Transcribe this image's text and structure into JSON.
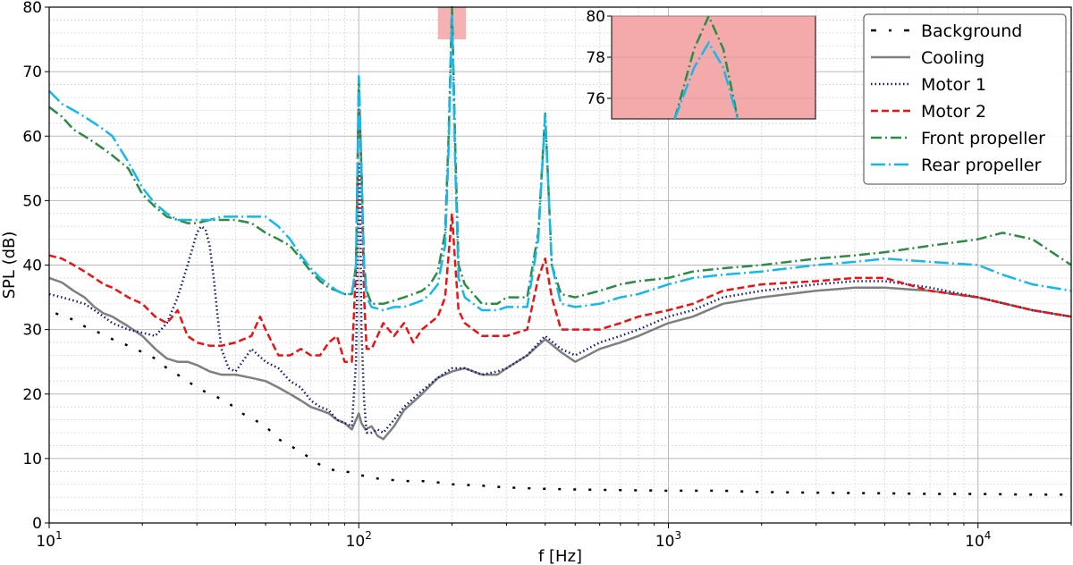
{
  "chart_data": {
    "type": "line",
    "xlabel": "f [Hz]",
    "ylabel": "SPL (dB)",
    "x_scale": "log",
    "xlim": [
      10,
      20000
    ],
    "ylim": [
      0,
      80
    ],
    "x_major_ticks": [
      10,
      100,
      1000,
      10000
    ],
    "x_tick_labels": [
      {
        "base": "10",
        "exp": "1"
      },
      {
        "base": "10",
        "exp": "2"
      },
      {
        "base": "10",
        "exp": "3"
      },
      {
        "base": "10",
        "exp": "4"
      }
    ],
    "y_ticks": [
      0,
      10,
      20,
      30,
      40,
      50,
      60,
      70,
      80
    ],
    "grid": true,
    "minor_grid": true,
    "legend_position": "top-right",
    "highlight_region": {
      "x": [
        180,
        222
      ],
      "y": [
        75,
        80
      ],
      "color": "#f4aaaa"
    },
    "inset": {
      "xlim": [
        180,
        222
      ],
      "ylim": [
        75,
        80
      ],
      "y_ticks": [
        76,
        78,
        80
      ],
      "series": [
        {
          "name": "Front propeller",
          "x": [
            193,
            197,
            200,
            203,
            206
          ],
          "y": [
            75,
            78.4,
            80,
            78.4,
            75
          ]
        },
        {
          "name": "Rear propeller",
          "x": [
            193,
            197,
            200,
            203,
            206
          ],
          "y": [
            75,
            77.5,
            78.7,
            77.5,
            75
          ]
        }
      ]
    },
    "series": [
      {
        "name": "Background",
        "color": "#000000",
        "style": "dash-dot-sparse",
        "width": 2.5,
        "x": [
          10.5,
          12,
          13,
          14.5,
          16,
          18,
          20,
          22,
          24,
          27,
          30,
          33,
          37,
          42,
          46,
          50,
          55,
          60,
          65,
          70,
          75,
          80,
          85,
          90,
          95,
          100,
          110,
          120,
          140,
          160,
          180,
          200,
          250,
          300,
          400,
          500,
          700,
          1000,
          1500,
          2000,
          3000,
          5000,
          7000,
          10000,
          15000,
          20000
        ],
        "y": [
          32.5,
          31.5,
          30.5,
          29.5,
          28.5,
          27.5,
          26.5,
          25.5,
          24,
          22.5,
          21,
          20,
          19,
          17,
          16,
          15,
          13,
          12,
          11,
          10,
          9,
          8.5,
          8,
          8,
          7.8,
          7.5,
          7,
          6.8,
          6.5,
          6.5,
          6.3,
          6,
          5.8,
          5.5,
          5.3,
          5.2,
          5.1,
          5,
          5,
          4.8,
          4.7,
          4.6,
          4.5,
          4.5,
          4.4,
          4.4
        ]
      },
      {
        "name": "Cooling",
        "color": "#7f7f7f",
        "style": "solid",
        "width": 2.5,
        "x": [
          10,
          11,
          12,
          13,
          14,
          15,
          16,
          18,
          20,
          22,
          24,
          26,
          28,
          30,
          33,
          36,
          40,
          45,
          50,
          55,
          60,
          65,
          70,
          75,
          80,
          85,
          90,
          95,
          98,
          100,
          102,
          105,
          110,
          115,
          120,
          130,
          140,
          160,
          180,
          200,
          220,
          250,
          280,
          300,
          350,
          400,
          450,
          500,
          600,
          700,
          800,
          1000,
          1200,
          1500,
          2000,
          3000,
          4000,
          5000,
          7000,
          10000,
          15000,
          20000
        ],
        "y": [
          38,
          37.3,
          36,
          35,
          33.5,
          32.5,
          32,
          30.5,
          29,
          27,
          25.5,
          25,
          25,
          24.5,
          23.5,
          23,
          23,
          22.5,
          22,
          21,
          20,
          19,
          18,
          17.5,
          17,
          16,
          15.5,
          14.5,
          16,
          17,
          15.5,
          14.5,
          15,
          13.5,
          13,
          15,
          17.5,
          20,
          22.5,
          23.5,
          24,
          23,
          23,
          24,
          26,
          28.5,
          26.5,
          25,
          27,
          28,
          29,
          31,
          32,
          34,
          35,
          36,
          36.5,
          36.5,
          36,
          35,
          33,
          32
        ]
      },
      {
        "name": "Motor 1",
        "color": "#0b1a7a",
        "style": "dotted",
        "width": 2.5,
        "x": [
          10,
          11,
          12,
          13,
          14,
          15,
          16,
          18,
          20,
          22,
          24,
          26,
          28,
          30,
          31,
          32,
          33,
          34,
          35,
          36,
          38,
          40,
          45,
          50,
          55,
          60,
          65,
          70,
          75,
          80,
          85,
          90,
          95,
          98,
          100,
          101,
          102,
          104,
          106,
          110,
          115,
          120,
          130,
          140,
          160,
          180,
          200,
          220,
          250,
          280,
          300,
          350,
          400,
          450,
          500,
          600,
          700,
          800,
          1000,
          1200,
          1500,
          2000,
          3000,
          4000,
          5000,
          7000,
          10000,
          15000,
          20000
        ],
        "y": [
          35.5,
          35,
          34.5,
          34,
          33,
          32,
          31,
          30,
          29.5,
          29,
          31,
          35,
          40,
          45,
          46,
          45.5,
          43,
          38,
          32,
          27,
          24,
          23.5,
          27,
          25,
          24,
          22,
          21,
          19,
          18,
          17.5,
          16,
          15.5,
          15,
          25,
          56,
          50,
          30,
          19,
          14,
          14,
          14.5,
          14,
          16,
          18,
          20.5,
          22.5,
          24,
          24,
          23,
          23.5,
          24,
          26,
          29,
          27,
          26,
          28,
          29,
          30,
          32,
          33,
          35,
          36,
          37,
          37.5,
          37.5,
          36.5,
          35,
          33,
          32
        ]
      },
      {
        "name": "Motor 2",
        "color": "#ee1111",
        "style": "dashed",
        "width": 2.5,
        "x": [
          10,
          11,
          12,
          13,
          14,
          15,
          16,
          18,
          20,
          22,
          24,
          25,
          26,
          28,
          30,
          33,
          36,
          40,
          45,
          48,
          50,
          55,
          60,
          65,
          70,
          75,
          80,
          85,
          90,
          95,
          98,
          100,
          102,
          104,
          106,
          110,
          120,
          130,
          140,
          150,
          160,
          180,
          190,
          200,
          205,
          210,
          220,
          250,
          280,
          300,
          350,
          380,
          400,
          420,
          450,
          500,
          600,
          700,
          800,
          1000,
          1200,
          1500,
          2000,
          3000,
          4000,
          5000,
          7000,
          10000,
          15000,
          20000
        ],
        "y": [
          41.5,
          41,
          40,
          39,
          38,
          37,
          36.5,
          35,
          34,
          32,
          31,
          32,
          33,
          29,
          28,
          27.5,
          27.5,
          28,
          29,
          32,
          30,
          26,
          26,
          27,
          26,
          26,
          28,
          29,
          25,
          25,
          40,
          67,
          55,
          35,
          27,
          27,
          31,
          29,
          31,
          28,
          30,
          32,
          35,
          48,
          40,
          33,
          31,
          29,
          29,
          29,
          30,
          38,
          41,
          35,
          30,
          30,
          30,
          31,
          32,
          33,
          34,
          36,
          37,
          37.5,
          38,
          38,
          36,
          35,
          33,
          32
        ]
      },
      {
        "name": "Front propeller",
        "color": "#2e8b46",
        "style": "dashdot",
        "width": 2.5,
        "x": [
          10,
          11,
          12,
          13,
          14,
          15,
          16,
          18,
          20,
          22,
          24,
          26,
          28,
          30,
          33,
          36,
          40,
          45,
          50,
          55,
          60,
          65,
          70,
          75,
          80,
          85,
          90,
          95,
          98,
          100,
          102,
          104,
          106,
          110,
          120,
          130,
          140,
          150,
          160,
          170,
          180,
          190,
          195,
          200,
          205,
          210,
          220,
          250,
          280,
          300,
          350,
          380,
          400,
          420,
          450,
          500,
          600,
          700,
          800,
          1000,
          1200,
          1500,
          2000,
          3000,
          4000,
          5000,
          7000,
          10000,
          12000,
          15000,
          20000
        ],
        "y": [
          64.5,
          63,
          61,
          60,
          59,
          58,
          57,
          55,
          51,
          49,
          47.5,
          47,
          46.5,
          46.5,
          47,
          47,
          47,
          46.5,
          45,
          44,
          43,
          41,
          39,
          37.5,
          36.5,
          36,
          35.5,
          35.5,
          40,
          69,
          55,
          40,
          36,
          34,
          34,
          34.5,
          35,
          35.5,
          36,
          37,
          39,
          45,
          60,
          80,
          58,
          40,
          37,
          34,
          34,
          35,
          35,
          45,
          63.5,
          40,
          35.5,
          35,
          36,
          37,
          37.5,
          38,
          39,
          39.5,
          40,
          41,
          41.5,
          42,
          43,
          44,
          45,
          44,
          40
        ]
      },
      {
        "name": "Rear propeller",
        "color": "#14b8ec",
        "style": "longdash-dot",
        "width": 2.5,
        "x": [
          10,
          11,
          12,
          13,
          14,
          15,
          16,
          18,
          20,
          22,
          24,
          26,
          28,
          30,
          33,
          36,
          40,
          45,
          50,
          55,
          60,
          65,
          70,
          75,
          80,
          85,
          90,
          95,
          98,
          100,
          102,
          104,
          106,
          110,
          120,
          130,
          140,
          150,
          160,
          170,
          180,
          190,
          195,
          200,
          205,
          210,
          220,
          250,
          280,
          300,
          350,
          380,
          400,
          420,
          450,
          500,
          600,
          700,
          800,
          1000,
          1200,
          1500,
          2000,
          3000,
          4000,
          5000,
          7000,
          10000,
          12000,
          15000,
          20000
        ],
        "y": [
          67,
          65,
          64,
          63,
          62,
          61,
          60,
          56,
          52,
          49.5,
          48,
          47,
          47,
          47,
          47,
          47.5,
          47.5,
          47.5,
          47.5,
          46,
          44,
          41.5,
          39.5,
          38,
          37,
          36,
          35.5,
          35.5,
          40,
          69.3,
          55,
          40,
          35,
          33.5,
          33,
          33.5,
          33.5,
          34,
          34.5,
          35.5,
          37,
          43,
          58,
          78.7,
          55,
          38,
          35,
          33,
          33,
          33.5,
          33.5,
          44,
          63.3,
          40,
          34,
          33.5,
          34,
          35,
          35.5,
          37,
          38,
          38.5,
          39,
          40,
          40.5,
          41,
          40.5,
          40,
          38.5,
          37,
          36
        ]
      }
    ]
  }
}
